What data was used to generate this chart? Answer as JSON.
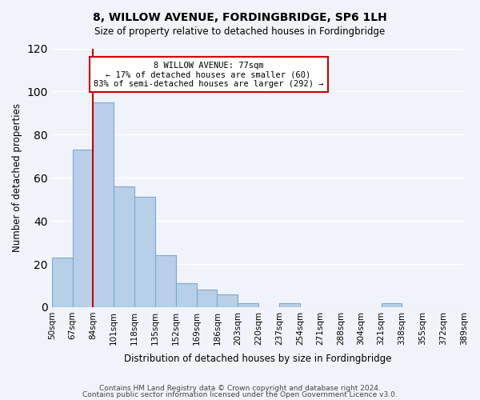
{
  "title": "8, WILLOW AVENUE, FORDINGBRIDGE, SP6 1LH",
  "subtitle": "Size of property relative to detached houses in Fordingbridge",
  "xlabel": "Distribution of detached houses by size in Fordingbridge",
  "ylabel": "Number of detached properties",
  "bin_labels": [
    "50sqm",
    "67sqm",
    "84sqm",
    "101sqm",
    "118sqm",
    "135sqm",
    "152sqm",
    "169sqm",
    "186sqm",
    "203sqm",
    "220sqm",
    "237sqm",
    "254sqm",
    "271sqm",
    "288sqm",
    "304sqm",
    "321sqm",
    "338sqm",
    "355sqm",
    "372sqm",
    "389sqm"
  ],
  "bar_values": [
    23,
    73,
    95,
    56,
    51,
    24,
    11,
    8,
    6,
    2,
    0,
    2,
    0,
    0,
    0,
    0,
    2,
    0,
    0,
    0,
    0
  ],
  "bar_color": "#b8cfe8",
  "bar_edge_color": "#7aaad0",
  "property_value": 77,
  "property_line_x": 77,
  "vline_color": "#cc0000",
  "ylim": [
    0,
    120
  ],
  "yticks": [
    0,
    20,
    40,
    60,
    80,
    100,
    120
  ],
  "annotation_box_text": "8 WILLOW AVENUE: 77sqm\n← 17% of detached houses are smaller (60)\n83% of semi-detached houses are larger (292) →",
  "annotation_box_facecolor": "#ffffff",
  "annotation_box_edgecolor": "#cc0000",
  "footer_line1": "Contains HM Land Registry data © Crown copyright and database right 2024.",
  "footer_line2": "Contains public sector information licensed under the Open Government Licence v3.0.",
  "background_color": "#f0f4fa",
  "grid_color": "#ffffff",
  "bin_edges": [
    50,
    67,
    84,
    101,
    118,
    135,
    152,
    169,
    186,
    203,
    220,
    237,
    254,
    271,
    288,
    304,
    321,
    338,
    355,
    372,
    389
  ]
}
